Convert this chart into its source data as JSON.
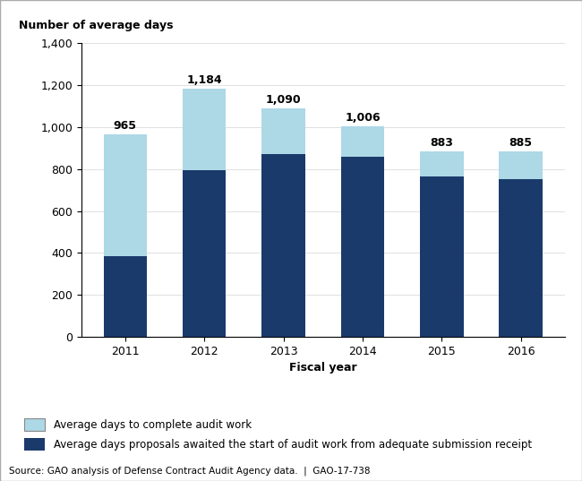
{
  "years": [
    "2011",
    "2012",
    "2013",
    "2014",
    "2015",
    "2016"
  ],
  "totals": [
    965,
    1184,
    1090,
    1006,
    883,
    885
  ],
  "dark_blue": [
    385,
    793,
    873,
    857,
    764,
    752
  ],
  "light_blue_top": [
    580,
    391,
    217,
    149,
    119,
    133
  ],
  "color_dark": "#1a3a6b",
  "color_light": "#add8e6",
  "ylabel": "Number of average days",
  "xlabel": "Fiscal year",
  "ylim": [
    0,
    1400
  ],
  "yticks": [
    0,
    200,
    400,
    600,
    800,
    1000,
    1200,
    1400
  ],
  "ytick_labels": [
    "0",
    "200",
    "400",
    "600",
    "800",
    "1,000",
    "1,200",
    "1,400"
  ],
  "legend_light": "Average days to complete audit work",
  "legend_dark": "Average days proposals awaited the start of audit work from adequate submission receipt",
  "source_text": "Source: GAO analysis of Defense Contract Audit Agency data.  |  GAO-17-738",
  "label_fontsize": 9,
  "tick_fontsize": 9,
  "bar_width": 0.55,
  "border_color": "#888888"
}
